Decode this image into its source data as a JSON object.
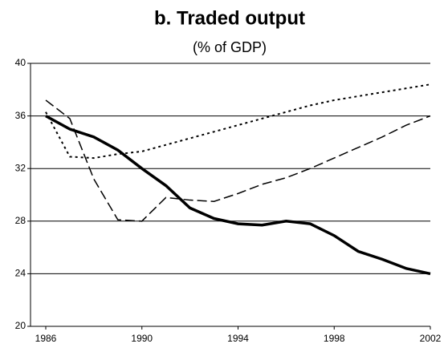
{
  "chart_data": {
    "type": "line",
    "title": "b. Traded output",
    "subtitle": "(% of GDP)",
    "categories": [
      "1986",
      null,
      null,
      null,
      "1990",
      null,
      null,
      null,
      "1994",
      null,
      null,
      null,
      "1998",
      null,
      null,
      null,
      "2002"
    ],
    "series": [
      {
        "color": "#000000",
        "dash": "solid",
        "values": [
          36,
          35,
          34.4,
          33.4,
          32,
          30.7,
          29,
          28.2,
          27.8,
          27.7,
          28,
          27.8,
          26.9,
          25.7,
          25.1,
          24.4,
          24
        ]
      },
      {
        "color": "#000000",
        "dash": "dashed",
        "values": [
          37.2,
          35.8,
          31.2,
          28.1,
          28,
          29.8,
          29.6,
          29.5,
          30.1,
          30.8,
          31.3,
          32,
          32.8,
          33.6,
          34.4,
          35.3,
          36
        ]
      },
      {
        "color": "#000000",
        "dash": "dotted",
        "values": [
          36.3,
          32.9,
          32.8,
          33.1,
          33.3,
          33.8,
          34.3,
          34.8,
          35.3,
          35.8,
          36.3,
          36.8,
          37.2,
          37.5,
          37.8,
          38.1,
          38.4
        ]
      }
    ],
    "ylim": [
      20,
      40
    ],
    "yticks": [
      20,
      24,
      28,
      32,
      36,
      40
    ],
    "grid": true
  }
}
